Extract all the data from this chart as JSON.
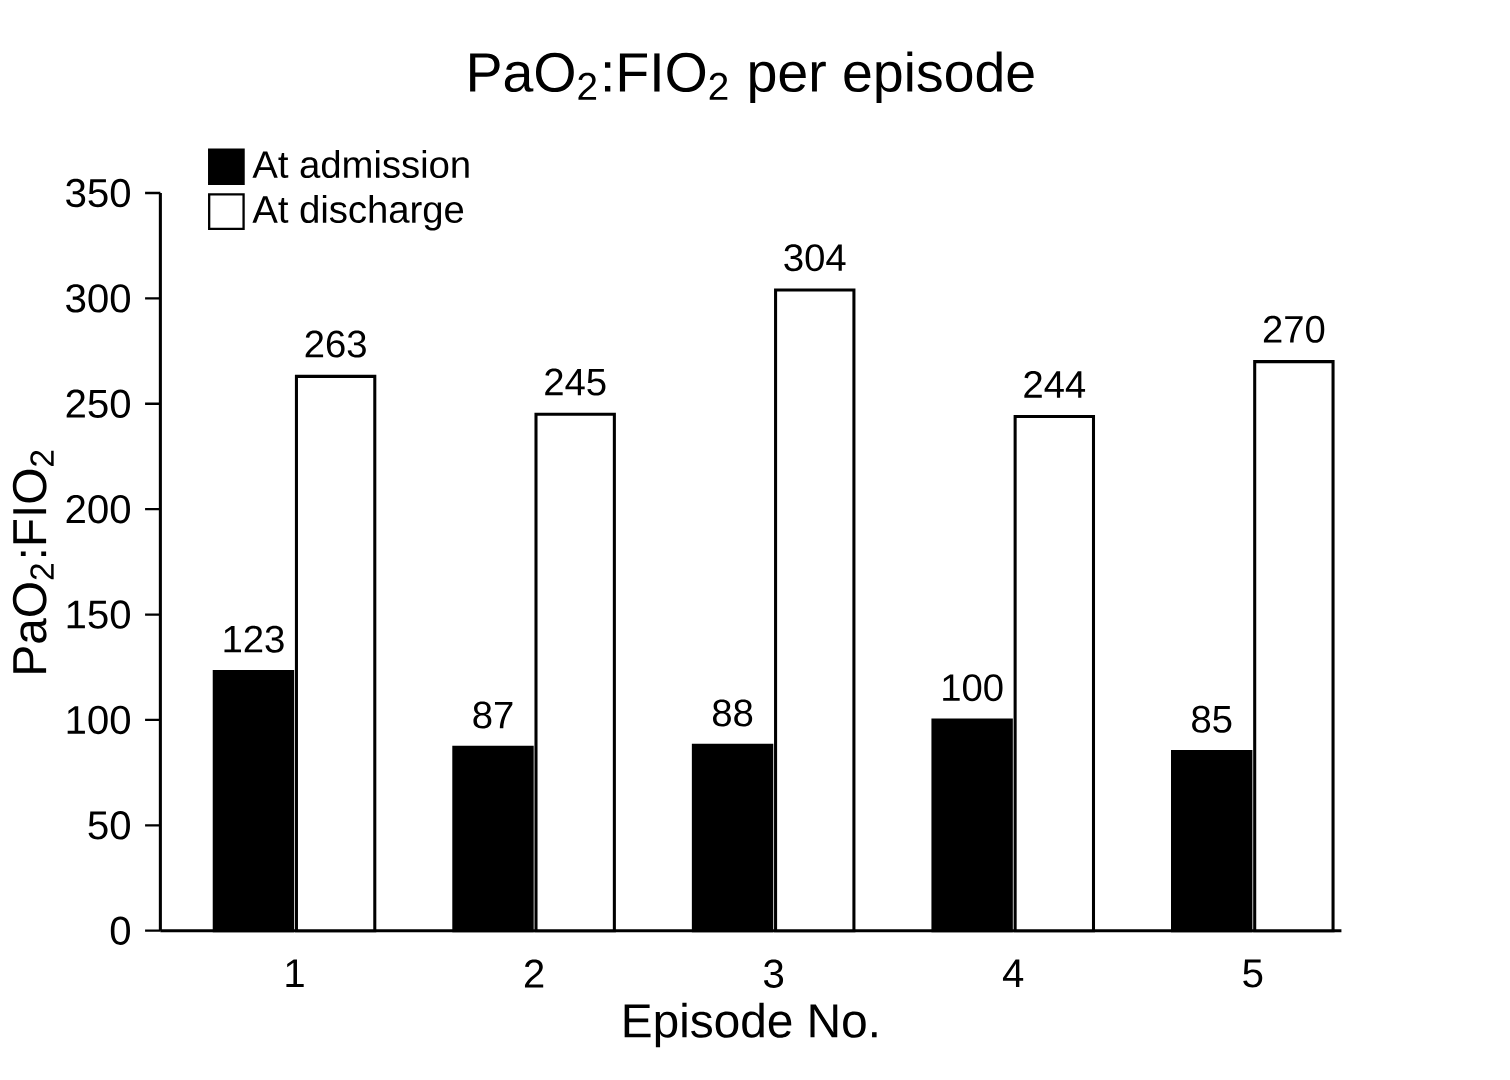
{
  "chart_data": {
    "type": "bar",
    "title": "PaO$_{2}$:FIO$_{2}$ per episode",
    "xlabel": "Episode No.",
    "ylabel": "PaO$_{2}$:FIO$_{2}$",
    "categories": [
      "1",
      "2",
      "3",
      "4",
      "5"
    ],
    "series": [
      {
        "name": "At admission",
        "color": "#000000",
        "values": [
          123,
          87,
          88,
          100,
          85
        ]
      },
      {
        "name": "At discharge",
        "color": "#ffffff",
        "values": [
          263,
          245,
          304,
          244,
          270
        ]
      }
    ],
    "ylim": [
      0,
      350
    ],
    "yticks": [
      0,
      50,
      100,
      150,
      200,
      250,
      300,
      350
    ],
    "grid": false,
    "legend": "top left",
    "data_labels": true
  }
}
